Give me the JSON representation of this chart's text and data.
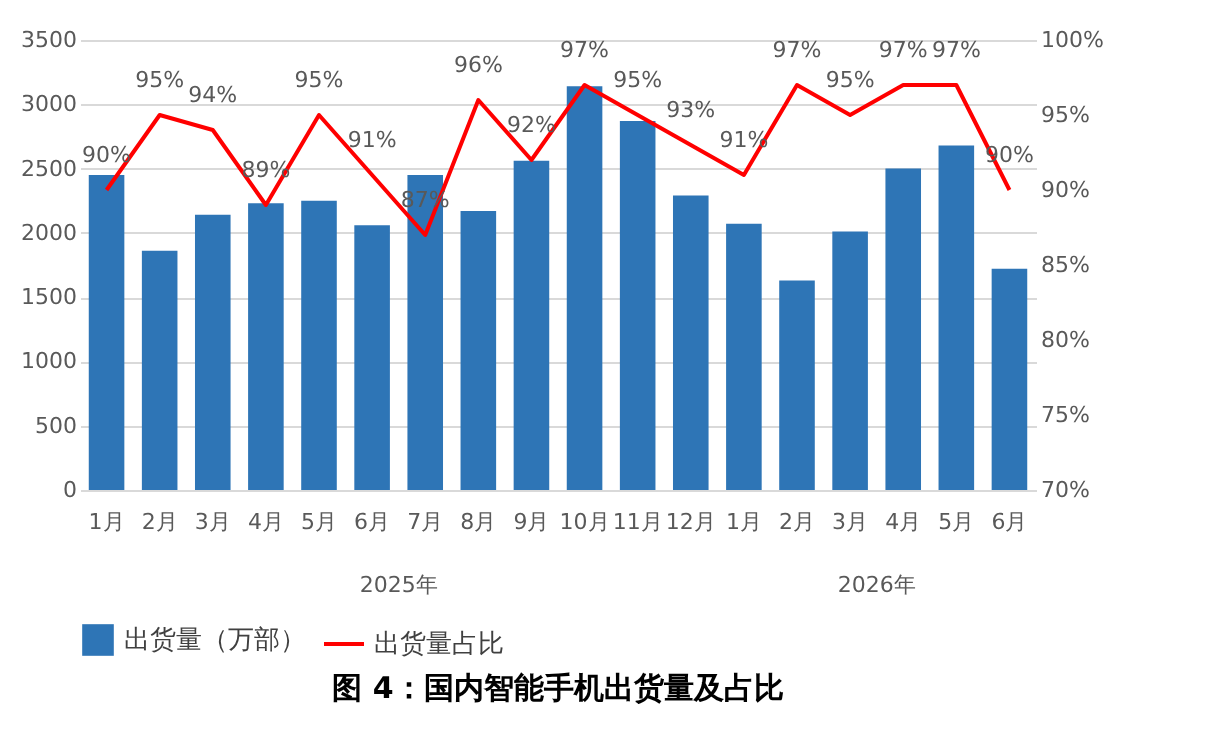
{
  "chart_data": {
    "type": "bar",
    "title": "图 4：国内智能手机出货量及占比",
    "categories": [
      "1月",
      "2月",
      "3月",
      "4月",
      "5月",
      "6月",
      "7月",
      "8月",
      "9月",
      "10月",
      "11月",
      "12月",
      "1月",
      "2月",
      "3月",
      "4月",
      "5月",
      "6月"
    ],
    "annotations": [
      "2025年",
      "2026年"
    ],
    "series": [
      {
        "name": "出货量（万部）",
        "color": "#2e75b6",
        "values": [
          2450,
          1860,
          2140,
          2230,
          2250,
          2060,
          2450,
          2170,
          2560,
          3140,
          2870,
          2290,
          2070,
          1630,
          2010,
          2500,
          2680,
          1720
        ]
      },
      {
        "name": "出货量占比",
        "type": "line",
        "axis": "y2",
        "color": "#ff0000",
        "values": [
          90,
          95,
          94,
          89,
          95,
          91,
          87,
          96,
          92,
          97,
          95,
          93,
          91,
          97,
          95,
          97,
          97,
          90
        ],
        "value_labels": [
          "90%",
          "95%",
          "94%",
          "89%",
          "95%",
          "91%",
          "87%",
          "96%",
          "92%",
          "97%",
          "95%",
          "93%",
          "91%",
          "97%",
          "95%",
          "97%",
          "97%",
          "90%"
        ]
      }
    ],
    "ylim": [
      0,
      3500
    ],
    "yticks": [
      0,
      500,
      1000,
      1500,
      2000,
      2500,
      3000,
      3500
    ],
    "y2lim": [
      70,
      100
    ],
    "y2ticks": [
      {
        "value": 70,
        "label": "70%"
      },
      {
        "value": 75,
        "label": "75%"
      },
      {
        "value": 80,
        "label": "80%"
      },
      {
        "value": 85,
        "label": "85%"
      },
      {
        "value": 90,
        "label": "90%"
      },
      {
        "value": 95,
        "label": "95%"
      },
      {
        "value": 100,
        "label": "100%"
      }
    ],
    "grid": "y",
    "legend": "bottom"
  }
}
